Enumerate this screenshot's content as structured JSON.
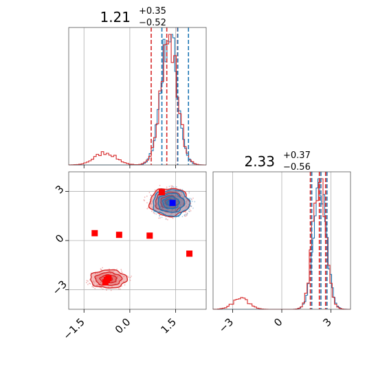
{
  "chart_data": {
    "type": "corner",
    "colors": {
      "blue": "#1f77b4",
      "red": "#d62728",
      "grid": "#b0b0b0",
      "truth_blue": "#0000ff",
      "truth_red": "#ff0000"
    },
    "params": [
      {
        "title_main": "1.21",
        "title_sup": "+0.35",
        "title_sub": "−0.52",
        "range": [
          -2.0,
          2.5
        ]
      },
      {
        "title_main": "2.33",
        "title_sup": "+0.37",
        "title_sub": "−0.56",
        "range": [
          -4.2,
          4.2
        ]
      }
    ],
    "ticks_x0": [
      {
        "v": -1.5,
        "label": "−1.5"
      },
      {
        "v": 0.0,
        "label": "0.0"
      },
      {
        "v": 1.5,
        "label": "1.5"
      }
    ],
    "ticks_x1": [
      {
        "v": -3,
        "label": "−3"
      },
      {
        "v": 0,
        "label": "0"
      },
      {
        "v": 3,
        "label": "3"
      }
    ],
    "ticks_y1": [
      {
        "v": 3,
        "label": "3"
      },
      {
        "v": 0,
        "label": "0"
      },
      {
        "v": -3,
        "label": "−3"
      }
    ],
    "quantiles": {
      "p0_blue": [
        0.69,
        1.21,
        1.56
      ],
      "p0_red": [
        0.7,
        1.21,
        1.56
      ],
      "p1_blue": [
        1.77,
        2.33,
        2.7
      ],
      "p1_red": [
        1.75,
        2.3,
        2.68
      ]
    },
    "hist0": {
      "red_main": {
        "mu": 1.28,
        "sd": 0.28,
        "amp": 1.0
      },
      "red_side": {
        "mu": -0.8,
        "sd": 0.35,
        "amp": 0.1
      },
      "blue_main": {
        "mu": 1.28,
        "sd": 0.27,
        "amp": 1.0
      }
    },
    "hist1": {
      "red_main": {
        "mu": 2.3,
        "sd": 0.4,
        "amp": 1.0
      },
      "red_side": {
        "mu": -2.5,
        "sd": 0.5,
        "amp": 0.08
      },
      "blue_main": {
        "mu": 2.33,
        "sd": 0.4,
        "amp": 1.0
      }
    },
    "blobs": [
      {
        "cx": 1.3,
        "cy": 2.35,
        "rx": 0.65,
        "ry": 0.85,
        "series": "red"
      },
      {
        "cx": 1.35,
        "cy": 2.3,
        "rx": 0.6,
        "ry": 0.8,
        "series": "blue"
      },
      {
        "cx": -0.7,
        "cy": -2.35,
        "rx": 0.6,
        "ry": 0.55,
        "series": "red"
      }
    ],
    "red_points": [
      [
        -1.15,
        0.45
      ],
      [
        -0.35,
        0.35
      ],
      [
        0.65,
        0.3
      ],
      [
        1.05,
        2.95
      ],
      [
        1.95,
        -0.8
      ],
      [
        -0.75,
        -2.4
      ],
      [
        -0.8,
        -2.55
      ],
      [
        -0.7,
        -2.3
      ]
    ],
    "blue_points": [
      [
        1.4,
        2.3
      ]
    ]
  }
}
